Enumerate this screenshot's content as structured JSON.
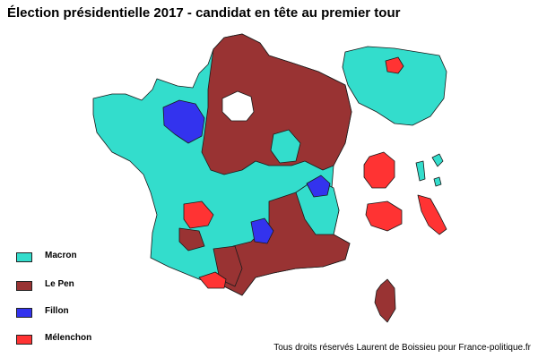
{
  "title": "Élection présidentielle 2017 - candidat en tête au premier tour",
  "legend": [
    {
      "label": "Macron",
      "color": "#33ddcc"
    },
    {
      "label": "Le Pen",
      "color": "#993333"
    },
    {
      "label": "Fillon",
      "color": "#3333ee"
    },
    {
      "label": "Mélenchon",
      "color": "#ff3333"
    }
  ],
  "credit": "Tous droits réservés Laurent de Boissieu pour France-politique.fr"
}
